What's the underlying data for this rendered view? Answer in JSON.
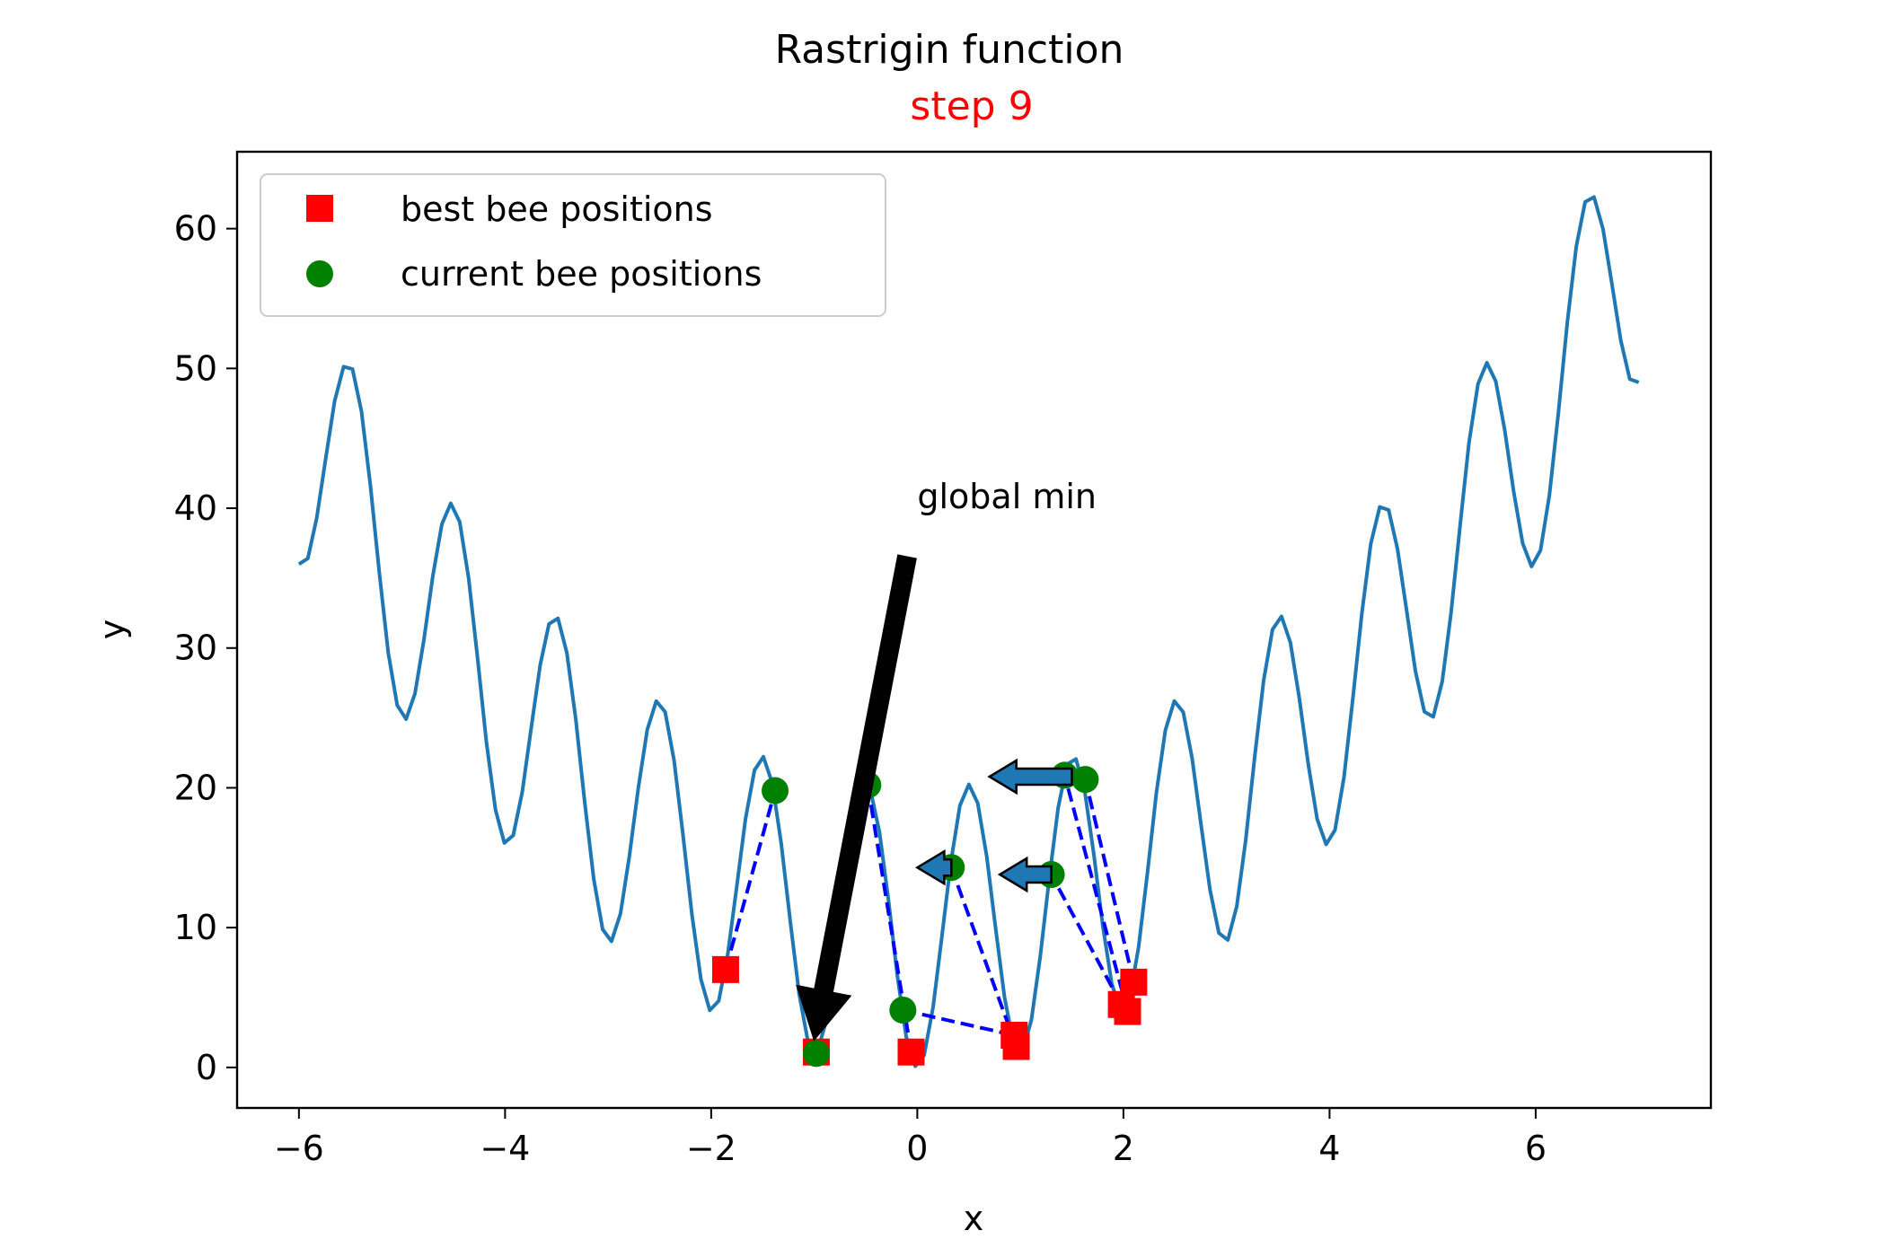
{
  "chart_data": {
    "type": "line",
    "title": "Rastrigin function",
    "subtitle": "step 9",
    "xlabel": "x",
    "ylabel": "y",
    "xlim": [
      -6.6,
      7.7
    ],
    "ylim": [
      -2.9,
      65.5
    ],
    "xticks": [
      -6,
      -4,
      -2,
      0,
      2,
      4,
      6
    ],
    "xtick_labels": [
      "−6",
      "−4",
      "−2",
      "0",
      "2",
      "4",
      "6"
    ],
    "yticks": [
      0,
      10,
      20,
      30,
      40,
      50,
      60
    ],
    "ytick_labels": [
      "0",
      "10",
      "20",
      "30",
      "40",
      "50",
      "60"
    ],
    "grid": false,
    "legend_position": "upper-left",
    "curve": {
      "function": "rastrigin",
      "x_range": [
        -6,
        7
      ],
      "color": "#1f77b4"
    },
    "series": [
      {
        "name": "best bee positions",
        "marker": "square",
        "color": "#ff0000",
        "points": [
          [
            -1.86,
            7.0
          ],
          [
            -0.98,
            1.1
          ],
          [
            -0.06,
            1.1
          ],
          [
            0.94,
            2.3
          ],
          [
            0.96,
            1.5
          ],
          [
            1.98,
            4.5
          ],
          [
            2.04,
            4.0
          ],
          [
            2.1,
            6.1
          ]
        ]
      },
      {
        "name": "current bee positions",
        "marker": "circle",
        "color": "#008000",
        "points": [
          [
            -1.38,
            19.8
          ],
          [
            -0.98,
            1.0
          ],
          [
            -0.48,
            20.2
          ],
          [
            -0.14,
            4.1
          ],
          [
            0.33,
            14.3
          ],
          [
            1.3,
            13.8
          ],
          [
            1.43,
            20.9
          ],
          [
            1.63,
            20.6
          ]
        ]
      }
    ],
    "links": [
      [
        [
          -1.86,
          7.0
        ],
        [
          -1.38,
          19.8
        ]
      ],
      [
        [
          -0.06,
          1.1
        ],
        [
          -0.48,
          20.2
        ]
      ],
      [
        [
          -0.14,
          4.1
        ],
        [
          0.94,
          2.3
        ]
      ],
      [
        [
          0.96,
          1.5
        ],
        [
          0.33,
          14.3
        ]
      ],
      [
        [
          1.98,
          4.5
        ],
        [
          1.3,
          13.8
        ]
      ],
      [
        [
          2.04,
          4.0
        ],
        [
          1.43,
          20.9
        ]
      ],
      [
        [
          2.1,
          6.1
        ],
        [
          1.63,
          20.6
        ]
      ]
    ],
    "velocity_arrows": [
      {
        "from": [
          1.5,
          20.8
        ],
        "to": [
          0.7,
          20.8
        ]
      },
      {
        "from": [
          1.3,
          13.8
        ],
        "to": [
          0.8,
          13.8
        ]
      },
      {
        "from": [
          0.33,
          14.3
        ],
        "to": [
          0.0,
          14.3
        ]
      }
    ],
    "annotation": {
      "text": "global min",
      "text_at": [
        0.0,
        40.0
      ],
      "arrow_from": [
        -0.1,
        36.5
      ],
      "arrow_to": [
        -1.0,
        2.0
      ]
    }
  }
}
